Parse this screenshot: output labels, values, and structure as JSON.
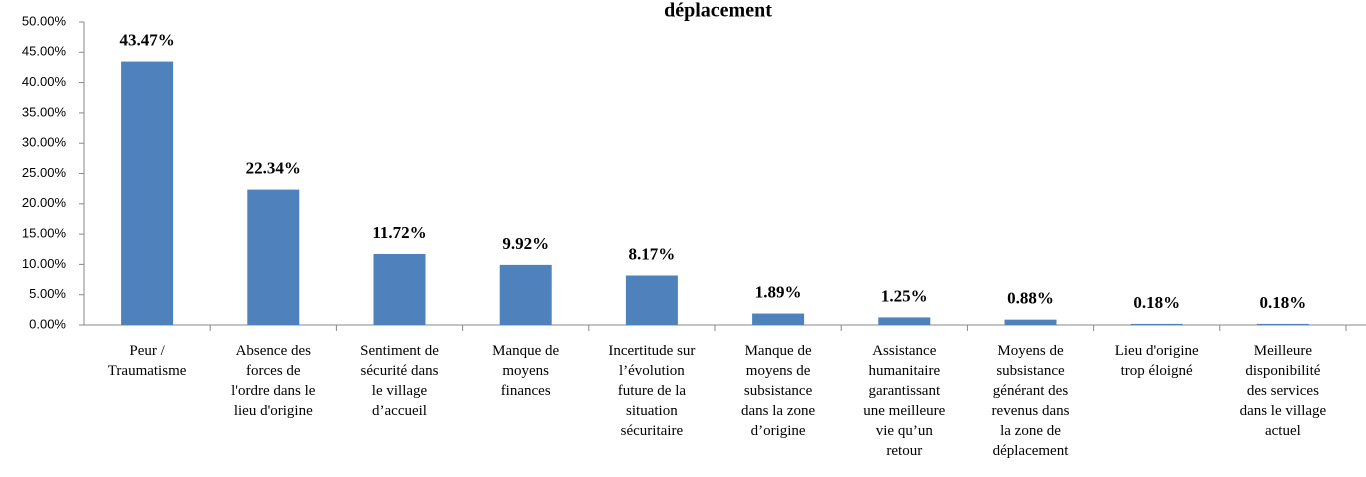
{
  "chart_data": {
    "type": "bar",
    "title": "déplacement",
    "categories": [
      "Peur /\nTraumatisme",
      "Absence des\nforces de\nl'ordre dans le\nlieu d'origine",
      "Sentiment de\nsécurité dans\nle village\nd’accueil",
      "Manque de\nmoyens\nfinances",
      "Incertitude sur\nl’évolution\nfuture de la\nsituation\nsécuritaire",
      "Manque de\nmoyens de\nsubsistance\ndans la zone\nd’origine",
      "Assistance\nhumanitaire\ngarantissant\nune meilleure\nvie qu’un\nretour",
      "Moyens de\nsubsistance\ngénérant des\nrevenus dans\nla zone de\ndéplacement",
      "Lieu d'origine\ntrop éloigné",
      "Meilleure\ndisponibilité\ndes services\ndans le village\nactuel"
    ],
    "values": [
      43.47,
      22.34,
      11.72,
      9.92,
      8.17,
      1.89,
      1.25,
      0.88,
      0.18,
      0.18
    ],
    "value_labels": [
      "43.47%",
      "22.34%",
      "11.72%",
      "9.92%",
      "8.17%",
      "1.89%",
      "1.25%",
      "0.88%",
      "0.18%",
      "0.18%"
    ],
    "color": "#4f81bd",
    "ylim": [
      0,
      50
    ],
    "yticks": [
      {
        "value": 0,
        "label": "0.00%"
      },
      {
        "value": 5,
        "label": "5.00%"
      },
      {
        "value": 10,
        "label": "10.00%"
      },
      {
        "value": 15,
        "label": "15.00%"
      },
      {
        "value": 20,
        "label": "20.00%"
      },
      {
        "value": 25,
        "label": "25.00%"
      },
      {
        "value": 30,
        "label": "30.00%"
      },
      {
        "value": 35,
        "label": "35.00%"
      },
      {
        "value": 40,
        "label": "40.00%"
      },
      {
        "value": 45,
        "label": "45.00%"
      },
      {
        "value": 50,
        "label": "50.00%"
      }
    ],
    "grid": false
  }
}
